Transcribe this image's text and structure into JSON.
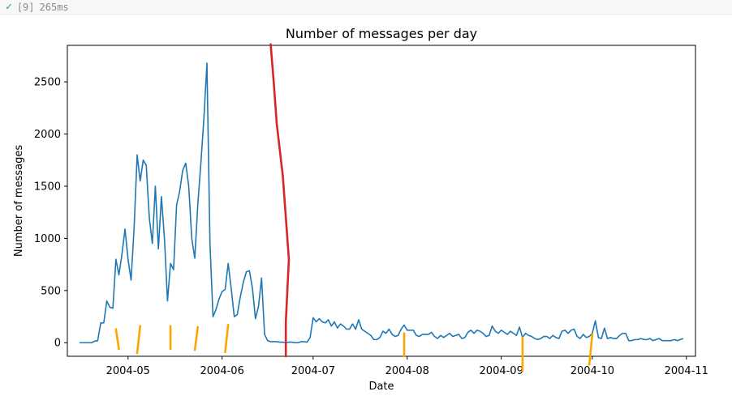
{
  "cell": {
    "status_icon": "check-icon",
    "execution_count": "[9]",
    "duration": "265ms"
  },
  "colors": {
    "series": "#1f77b4",
    "red_marker": "#d62728",
    "orange_marker": "#ffa500",
    "axis": "#000000"
  },
  "chart_data": {
    "type": "line",
    "title": "Number of messages per day",
    "xlabel": "Date",
    "ylabel": "Number of messages",
    "xlim": [
      "2004-04-11",
      "2004-11-04"
    ],
    "ylim": [
      -130,
      2850
    ],
    "x_ticks": [
      "2004-05",
      "2004-06",
      "2004-07",
      "2004-08",
      "2004-09",
      "2004-10",
      "2004-11"
    ],
    "y_ticks": [
      0,
      500,
      1000,
      1500,
      2000,
      2500
    ],
    "grid": false,
    "x_start": "2004-04-15",
    "series": [
      {
        "values": [
          0,
          0,
          0,
          0,
          0,
          15,
          20,
          190,
          190,
          400,
          340,
          330,
          800,
          650,
          850,
          1090,
          800,
          600,
          1100,
          1800,
          1550,
          1750,
          1700,
          1200,
          950,
          1500,
          900,
          1400,
          1000,
          400,
          760,
          700,
          1320,
          1450,
          1650,
          1720,
          1500,
          1000,
          810,
          1330,
          1720,
          2150,
          2680,
          950,
          250,
          320,
          420,
          490,
          510,
          760,
          520,
          250,
          270,
          440,
          580,
          680,
          690,
          520,
          230,
          350,
          620,
          80,
          20,
          10,
          10,
          10,
          5,
          5,
          0,
          5,
          5,
          0,
          0,
          10,
          10,
          5,
          50,
          240,
          200,
          230,
          200,
          190,
          220,
          160,
          200,
          140,
          180,
          160,
          130,
          130,
          180,
          130,
          220,
          130,
          110,
          90,
          70,
          30,
          30,
          50,
          110,
          90,
          130,
          80,
          60,
          70,
          130,
          170,
          120,
          120,
          120,
          70,
          60,
          80,
          80,
          80,
          100,
          60,
          40,
          70,
          50,
          70,
          90,
          60,
          70,
          80,
          40,
          50,
          100,
          120,
          90,
          120,
          110,
          90,
          60,
          70,
          160,
          110,
          90,
          120,
          100,
          80,
          110,
          90,
          70,
          150,
          50,
          90,
          70,
          60,
          40,
          30,
          40,
          60,
          60,
          40,
          70,
          50,
          40,
          110,
          120,
          90,
          120,
          130,
          60,
          40,
          80,
          50,
          60,
          90,
          210,
          50,
          40,
          140,
          40,
          50,
          40,
          40,
          70,
          90,
          90,
          20,
          20,
          30,
          30,
          40,
          30,
          30,
          40,
          20,
          30,
          40,
          20,
          20,
          20,
          20,
          30,
          20,
          30,
          40
        ]
      }
    ],
    "annotations": {
      "red_line": [
        {
          "date": "2004-06-17",
          "value": 2860
        },
        {
          "date": "2004-06-18",
          "value": 2500
        },
        {
          "date": "2004-06-19",
          "value": 2100
        },
        {
          "date": "2004-06-21",
          "value": 1600
        },
        {
          "date": "2004-06-22",
          "value": 1200
        },
        {
          "date": "2004-06-23",
          "value": 800
        },
        {
          "date": "2004-06-22",
          "value": 200
        },
        {
          "date": "2004-06-22",
          "value": -130
        }
      ],
      "orange_strokes": [
        [
          {
            "date": "2004-04-27",
            "value": 130
          },
          {
            "date": "2004-04-28",
            "value": -60
          }
        ],
        [
          {
            "date": "2004-05-05",
            "value": 160
          },
          {
            "date": "2004-05-04",
            "value": -100
          }
        ],
        [
          {
            "date": "2004-05-15",
            "value": 160
          },
          {
            "date": "2004-05-15",
            "value": -60
          }
        ],
        [
          {
            "date": "2004-05-24",
            "value": 150
          },
          {
            "date": "2004-05-23",
            "value": -70
          }
        ],
        [
          {
            "date": "2004-06-03",
            "value": 170
          },
          {
            "date": "2004-06-02",
            "value": -90
          }
        ],
        [
          {
            "date": "2004-07-31",
            "value": 90
          },
          {
            "date": "2004-07-31",
            "value": -130
          }
        ],
        [
          {
            "date": "2004-09-08",
            "value": 50
          },
          {
            "date": "2004-09-08",
            "value": -270
          }
        ],
        [
          {
            "date": "2004-10-01",
            "value": 80
          },
          {
            "date": "2004-09-30",
            "value": -210
          }
        ]
      ]
    }
  }
}
